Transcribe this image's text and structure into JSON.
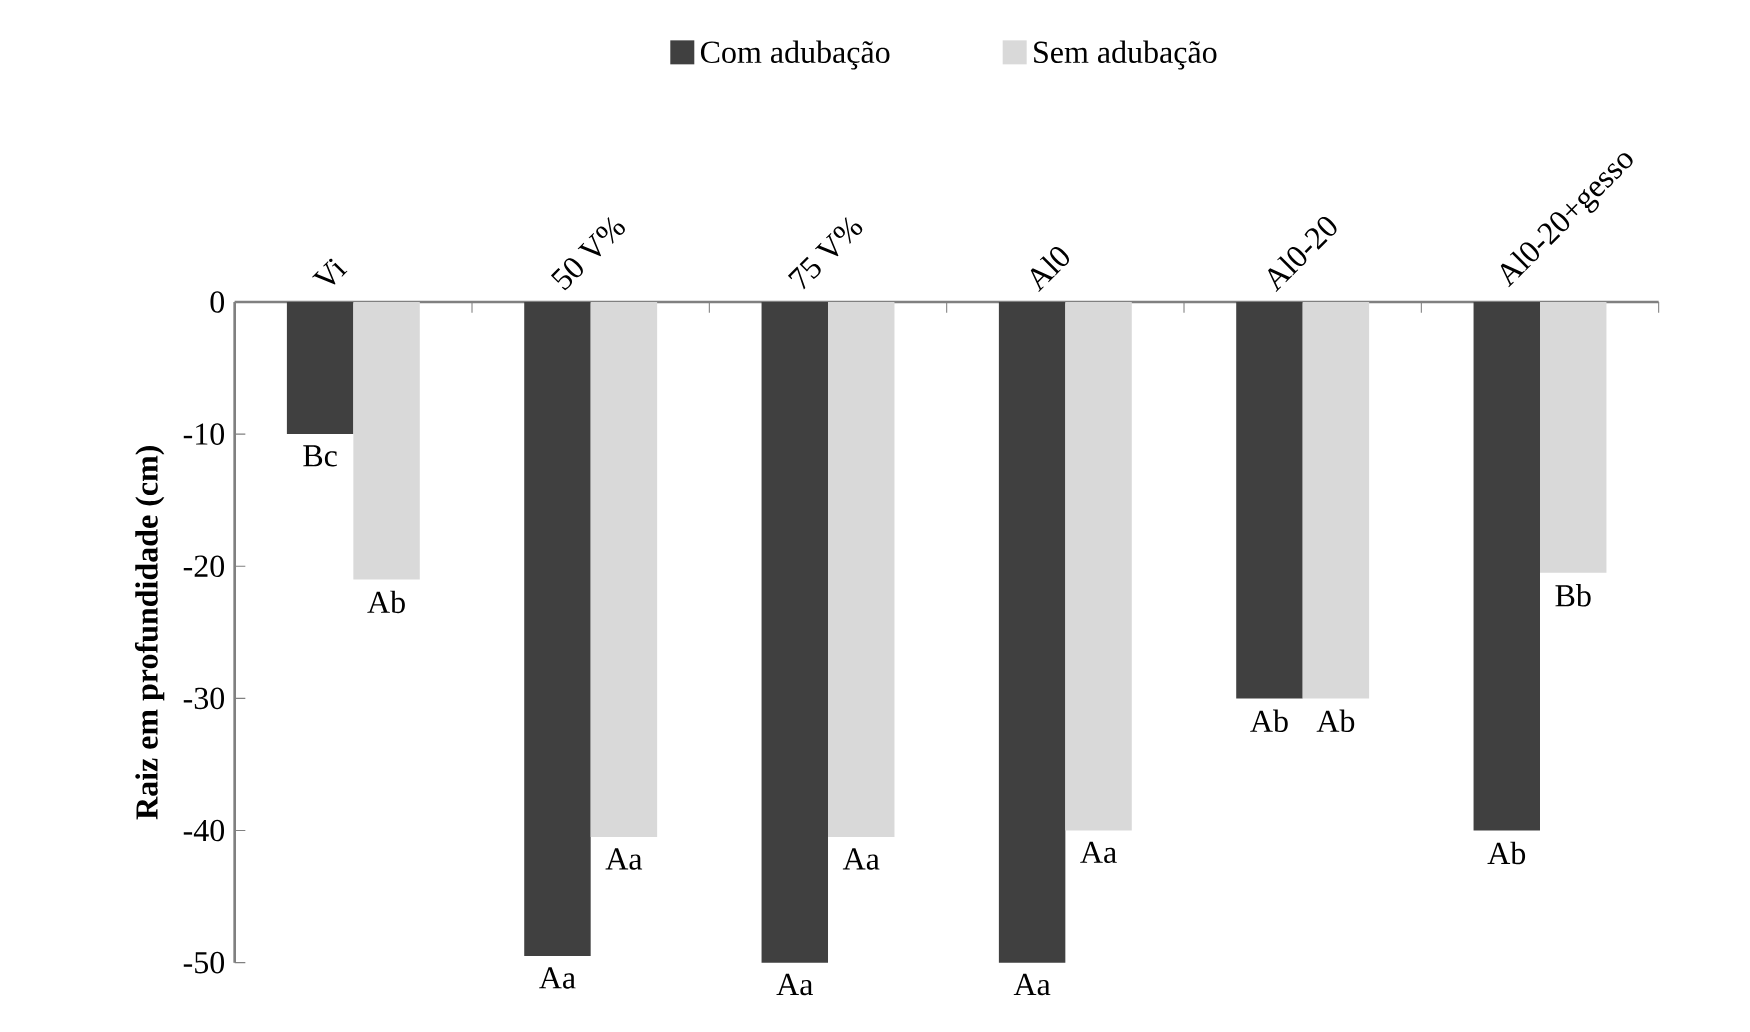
{
  "chart_data": {
    "type": "bar",
    "ylabel": "Raiz em profundidade (cm)",
    "categories": [
      "Vi",
      "50 V%",
      "75 V%",
      "Al0",
      "Al0-20",
      "Al0-20+gesso"
    ],
    "series": [
      {
        "name": "Com adubação",
        "color": "#404040",
        "values": [
          -10,
          -49.5,
          -50,
          -50,
          -30,
          -40
        ],
        "value_labels": [
          "Bc",
          "Aa",
          "Aa",
          "Aa",
          "Ab",
          "Ab"
        ]
      },
      {
        "name": "Sem adubação",
        "color": "#d9d9d9",
        "values": [
          -21,
          -40.5,
          -40.5,
          -40,
          -30,
          -20.5
        ],
        "value_labels": [
          "Ab",
          "Aa",
          "Aa",
          "Aa",
          "Ab",
          "Bb"
        ]
      }
    ],
    "ylim": [
      -50,
      0
    ],
    "yticks": [
      -50,
      -40,
      -30,
      -20,
      -10,
      0
    ],
    "legend": "top"
  }
}
